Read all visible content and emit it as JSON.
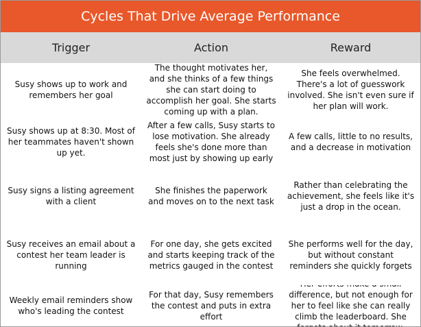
{
  "title": "Cycles That Drive Average Performance",
  "columns": [
    "Trigger",
    "Action",
    "Reward"
  ],
  "rows": [
    {
      "trigger": "Susy shows up to work and remembers her goal",
      "action": "The thought motivates her, and she thinks of a few things she can start doing to accomplish her goal. She starts coming up with a plan.",
      "reward": "She feels overwhelmed. There's a lot of guesswork involved. She isn't even sure if her plan will work."
    },
    {
      "trigger": "Susy shows up at 8:30. Most of her teammates haven't shown up yet.",
      "action": "After a few calls, Susy starts to lose motivation. She already feels she's done more than most just by showing up early",
      "reward": "A few calls, little to no results, and a decrease in motivation"
    },
    {
      "trigger": "Susy signs a listing agreement with a client",
      "action": "She finishes the paperwork and moves on to the next task",
      "reward": "Rather than celebrating the achievement, she feels like it's just a drop in the ocean."
    },
    {
      "trigger": "Susy receives an email about a contest her team leader is running",
      "action": "For one day, she gets excited and starts keeping track of the metrics gauged in the contest",
      "reward": "She performs well for the day, but without constant reminders she quickly forgets"
    },
    {
      "trigger": "Weekly email reminders show who's leading the contest",
      "action": "For that day, Susy remembers the contest and puts in extra effort",
      "reward": "Her efforts make a small difference, but not enough for her to feel like she can really climb the leaderboard. She forgets about it tomorrow."
    }
  ]
}
